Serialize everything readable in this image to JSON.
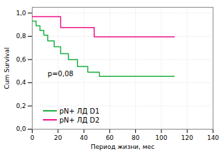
{
  "chart_data": {
    "type": "line",
    "xlabel": "Период жизни, мес",
    "ylabel": "Cum Survival",
    "xlim": [
      0,
      140
    ],
    "ylim": [
      0.0,
      1.05
    ],
    "xticks": [
      0,
      20,
      40,
      60,
      80,
      100,
      120,
      140
    ],
    "yticks": [
      {
        "value": 0.0,
        "label": "0,0"
      },
      {
        "value": 0.2,
        "label": "0,2"
      },
      {
        "value": 0.4,
        "label": "0,4"
      },
      {
        "value": 0.6,
        "label": "0,6"
      },
      {
        "value": 0.8,
        "label": "0,8"
      },
      {
        "value": 1.0,
        "label": "1,0"
      }
    ],
    "grid": true,
    "legend": "lower left",
    "annotations": [
      {
        "text": "p=0,08",
        "x": 12,
        "y": 0.455
      }
    ],
    "series": [
      {
        "name": "pN+ ЛД D1",
        "color": "#1db040",
        "x": [
          0,
          3,
          3,
          6,
          6,
          9,
          9,
          12,
          12,
          17,
          17,
          22,
          22,
          28,
          28,
          35,
          35,
          43,
          43,
          52,
          52,
          65,
          65,
          110
        ],
        "values": [
          0.93,
          0.93,
          0.89,
          0.89,
          0.85,
          0.85,
          0.81,
          0.81,
          0.76,
          0.76,
          0.71,
          0.71,
          0.65,
          0.65,
          0.6,
          0.6,
          0.54,
          0.54,
          0.49,
          0.49,
          0.455,
          0.455,
          0.455,
          0.455
        ]
      },
      {
        "name": "pN+ ЛД D2",
        "color": "#f0148a",
        "x": [
          0,
          22,
          22,
          48,
          48,
          110
        ],
        "values": [
          0.97,
          0.97,
          0.875,
          0.875,
          0.795,
          0.795
        ]
      }
    ]
  }
}
